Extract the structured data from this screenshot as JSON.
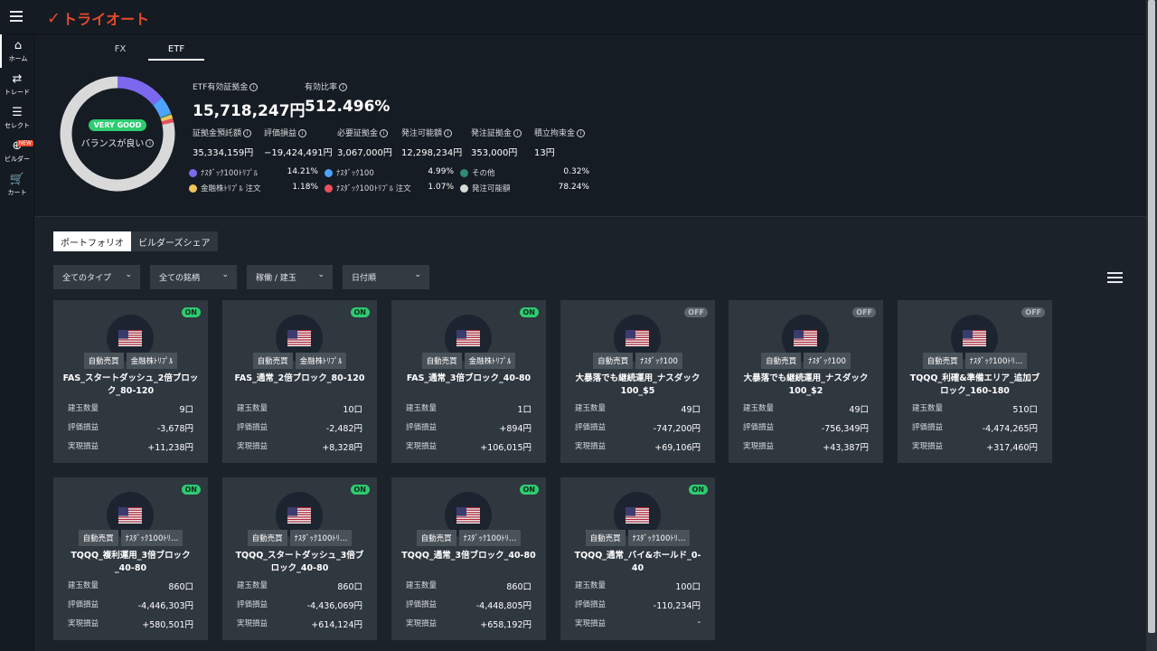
{
  "app": {
    "logo_text": "トライオート"
  },
  "nav": [
    {
      "label": "ホーム",
      "icon": "home-icon"
    },
    {
      "label": "トレード",
      "icon": "trade-icon"
    },
    {
      "label": "セレクト",
      "icon": "select-icon"
    },
    {
      "label": "ビルダー",
      "icon": "builder-icon",
      "badge": "NEW"
    },
    {
      "label": "カート",
      "icon": "cart-icon"
    }
  ],
  "tabs": [
    "FX",
    "ETF"
  ],
  "summary": {
    "status_badge": "VERY GOOD",
    "balance_text": "バランスが良い",
    "etf_margin_label": "ETF有効証拠金",
    "etf_margin_value": "15,718,247円",
    "ratio_label": "有効比率",
    "ratio_value": "512.496%",
    "metrics": [
      {
        "label": "証拠金預託額",
        "value": "35,334,159円"
      },
      {
        "label": "評価損益",
        "value": "−19,424,491円"
      },
      {
        "label": "必要証拠金",
        "value": "3,067,000円"
      },
      {
        "label": "発注可能額",
        "value": "12,298,234円"
      },
      {
        "label": "発注証拠金",
        "value": "353,000円"
      },
      {
        "label": "積立拘束金",
        "value": "13円"
      }
    ],
    "legend": [
      {
        "label": "ﾅｽﾀﾞｯｸ100ﾄﾘﾌﾟﾙ",
        "pct": "14.21%",
        "color": "#7b68ee",
        "value": 14.21
      },
      {
        "label": "ﾅｽﾀﾞｯｸ100",
        "pct": "4.99%",
        "color": "#4da3ff",
        "value": 4.99
      },
      {
        "label": "その他",
        "pct": "0.32%",
        "color": "#2e8b74",
        "value": 0.32
      },
      {
        "label": "金融株ﾄﾘﾌﾟﾙ 注文",
        "pct": "1.18%",
        "color": "#f2c45a",
        "value": 1.18
      },
      {
        "label": "ﾅｽﾀﾞｯｸ100ﾄﾘﾌﾟﾙ 注文",
        "pct": "1.07%",
        "color": "#e8505b",
        "value": 1.07
      },
      {
        "label": "発注可能額",
        "pct": "78.24%",
        "color": "#d9d9d9",
        "value": 78.24
      }
    ]
  },
  "portfolio_tabs": [
    "ポートフォリオ",
    "ビルダーズシェア"
  ],
  "filters": [
    "全てのタイプ",
    "全ての銘柄",
    "稼働 / 建玉",
    "日付順"
  ],
  "row_labels": {
    "qty": "建玉数量",
    "unrealized": "評価損益",
    "realized": "実現損益"
  },
  "cards": [
    {
      "status": "ON",
      "tag1": "自動売買",
      "tag2": "金融株ﾄﾘﾌﾟﾙ",
      "name": "FAS_スタートダッシュ_2倍ブロック_80-120",
      "qty": "9口",
      "unrealized": "-3,678円",
      "realized": "+11,238円"
    },
    {
      "status": "ON",
      "tag1": "自動売買",
      "tag2": "金融株ﾄﾘﾌﾟﾙ",
      "name": "FAS_通常_2倍ブロック_80-120",
      "qty": "10口",
      "unrealized": "-2,482円",
      "realized": "+8,328円"
    },
    {
      "status": "ON",
      "tag1": "自動売買",
      "tag2": "金融株ﾄﾘﾌﾟﾙ",
      "name": "FAS_通常_3倍ブロック_40-80",
      "qty": "1口",
      "unrealized": "+894円",
      "realized": "+106,015円"
    },
    {
      "status": "OFF",
      "tag1": "自動売買",
      "tag2": "ﾅｽﾀﾞｯｸ100",
      "name": "大暴落でも継続運用_ナスダック100_$5",
      "qty": "49口",
      "unrealized": "-747,200円",
      "realized": "+69,106円"
    },
    {
      "status": "OFF",
      "tag1": "自動売買",
      "tag2": "ﾅｽﾀﾞｯｸ100",
      "name": "大暴落でも継続運用_ナスダック100_$2",
      "qty": "49口",
      "unrealized": "-756,349円",
      "realized": "+43,387円"
    },
    {
      "status": "OFF",
      "tag1": "自動売買",
      "tag2": "ﾅｽﾀﾞｯｸ100ﾄﾘ…",
      "name": "TQQQ_利確&準備エリア_追加ブロック_160-180",
      "qty": "510口",
      "unrealized": "-4,474,265円",
      "realized": "+317,460円"
    },
    {
      "status": "ON",
      "tag1": "自動売買",
      "tag2": "ﾅｽﾀﾞｯｸ100ﾄﾘ…",
      "name": "TQQQ_複利運用_3倍ブロック_40-80",
      "qty": "860口",
      "unrealized": "-4,446,303円",
      "realized": "+580,501円"
    },
    {
      "status": "ON",
      "tag1": "自動売買",
      "tag2": "ﾅｽﾀﾞｯｸ100ﾄﾘ…",
      "name": "TQQQ_スタートダッシュ_3倍ブロック_40-80",
      "qty": "860口",
      "unrealized": "-4,436,069円",
      "realized": "+614,124円"
    },
    {
      "status": "ON",
      "tag1": "自動売買",
      "tag2": "ﾅｽﾀﾞｯｸ100ﾄﾘ…",
      "name": "TQQQ_通常_3倍ブロック_40-80",
      "qty": "860口",
      "unrealized": "-4,448,805円",
      "realized": "+658,192円"
    },
    {
      "status": "ON",
      "tag1": "自動売買",
      "tag2": "ﾅｽﾀﾞｯｸ100ﾄﾘ…",
      "name": "TQQQ_通常_バイ&ホールド_0-40",
      "qty": "100口",
      "unrealized": "-110,234円",
      "realized": "-"
    }
  ]
}
